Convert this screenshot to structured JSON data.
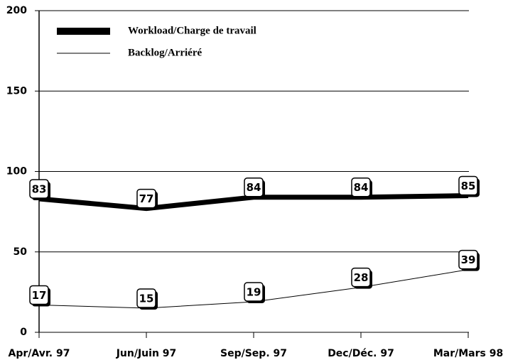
{
  "chart_data": {
    "type": "line",
    "categories": [
      "Apr/Avr. 97",
      "Jun/Juin 97",
      "Sep/Sep. 97",
      "Dec/Déc. 97",
      "Mar/Mars 98"
    ],
    "series": [
      {
        "name": "Workload/Charge de travail",
        "color": "#000000",
        "values": [
          83,
          77,
          84,
          84,
          85
        ]
      },
      {
        "name": "Backlog/Arriéré",
        "color": "#000000",
        "values": [
          17,
          15,
          19,
          28,
          39
        ]
      }
    ],
    "ylim": [
      0,
      200
    ],
    "yticks": [
      0,
      50,
      100,
      150,
      200
    ],
    "grid": true,
    "legend": "upper left"
  }
}
